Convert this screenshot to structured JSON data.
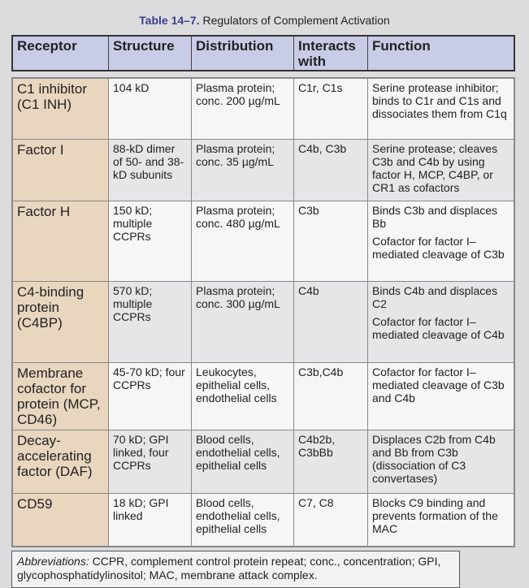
{
  "title": {
    "number": "Table 14–7.",
    "text": "Regulators of Complement Activation"
  },
  "columns": [
    "Receptor",
    "Structure",
    "Distribution",
    "Interacts with",
    "Function"
  ],
  "rows": [
    {
      "receptor": "C1 inhibitor (C1 INH)",
      "structure": "104 kD",
      "distribution": "Plasma protein; conc. 200 µg/mL",
      "interacts": "C1r, C1s",
      "function": [
        "Serine protease inhibitor; binds to C1r and C1s and dissociates them from C1q"
      ]
    },
    {
      "receptor": "Factor  I",
      "structure": "88-kD dimer of 50- and 38-kD subunits",
      "distribution": "Plasma protein; conc. 35 µg/mL",
      "interacts": "C4b, C3b",
      "function": [
        "Serine protease; cleaves C3b and C4b by using factor H, MCP, C4BP, or CR1 as cofactors"
      ]
    },
    {
      "receptor": "Factor H",
      "structure": "150 kD; multiple CCPRs",
      "distribution": "Plasma protein; conc. 480 µg/mL",
      "interacts": "C3b",
      "function": [
        "Binds C3b and displaces Bb",
        "Cofactor for factor I–mediated cleavage of C3b"
      ]
    },
    {
      "receptor": "C4-binding protein (C4BP)",
      "structure": "570 kD; multiple CCPRs",
      "distribution": "Plasma protein; conc. 300 µg/mL",
      "interacts": "C4b",
      "function": [
        "Binds C4b and displaces C2",
        "Cofactor for factor I–mediated cleavage of C4b"
      ]
    },
    {
      "receptor": "Membrane cofactor for protein (MCP, CD46)",
      "structure": "45-70 kD; four CCPRs",
      "distribution": "Leukocytes, epithelial cells, endothelial cells",
      "interacts": "C3b,C4b",
      "function": [
        "Cofactor for factor I–mediated cleavage of C3b and C4b"
      ]
    },
    {
      "receptor": "Decay-accelerating factor (DAF)",
      "structure": "70 kD; GPI linked, four CCPRs",
      "distribution": "Blood cells, endothelial cells, epithelial cells",
      "interacts": "C4b2b, C3bBb",
      "function": [
        "Displaces C2b from C4b and Bb from C3b (dissociation of C3 convertases)"
      ]
    },
    {
      "receptor": "CD59",
      "structure": "18 kD; GPI linked",
      "distribution": "Blood cells, endothelial cells, epithelial cells",
      "interacts": "C7, C8",
      "function": [
        "Blocks C9 binding and prevents formation of the MAC"
      ]
    }
  ],
  "footnote": {
    "label": "Abbreviations:",
    "text": " CCPR, complement control protein repeat; conc., concentration; GPI, glycophosphatidylinositol; MAC, membrane attack complex."
  },
  "colors": {
    "header": "#c9cce6",
    "receptor_column": "#e8d6bf",
    "title_number": "#3a3f8f"
  }
}
